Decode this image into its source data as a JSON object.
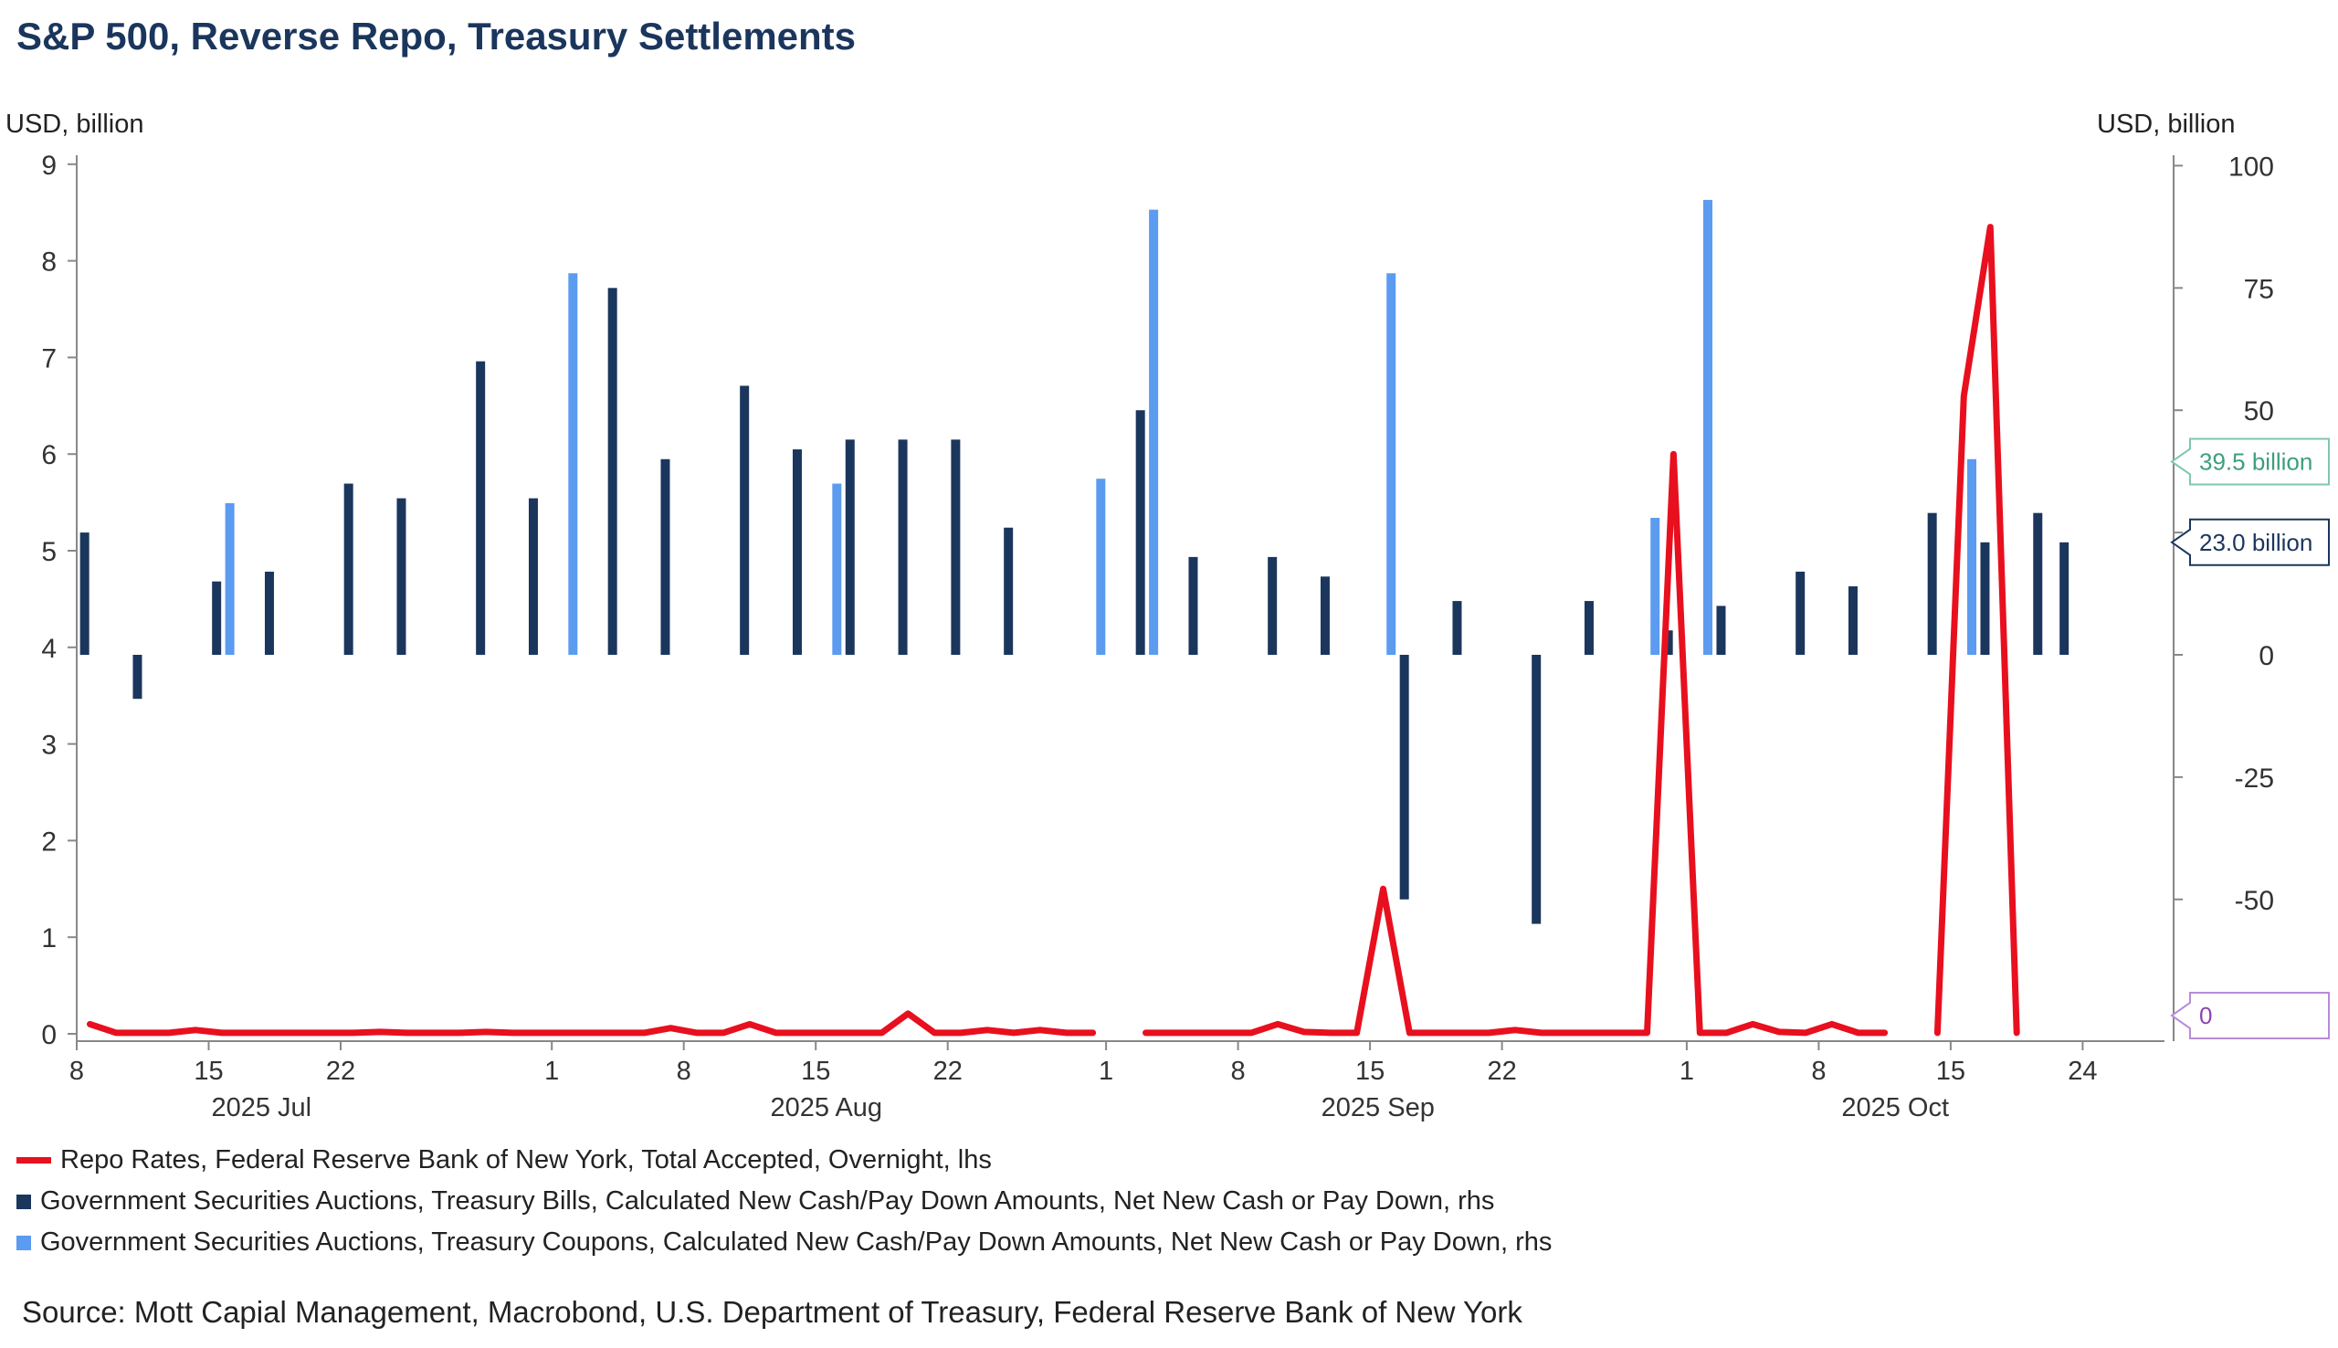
{
  "title": "S&P 500, Reverse Repo, Treasury Settlements",
  "colors": {
    "repo": "#e8101e",
    "bills": "#1b365d",
    "coupons": "#5b9bf0",
    "label_coupons_border": "#7fc7ad",
    "label_coupons_text": "#3f9e7c",
    "label_bills_border": "#1b365d",
    "label_repo_border": "#b98bd6",
    "label_repo_text": "#8e44ad",
    "axis": "#888888",
    "title": "#1b365d"
  },
  "chart_data": {
    "type": "bar+line",
    "title": "S&P 500, Reverse Repo, Treasury Settlements",
    "left_axis": {
      "label": "USD, billion",
      "range": [
        0,
        9
      ],
      "ticks": [
        0,
        1,
        2,
        3,
        4,
        5,
        6,
        7,
        8,
        9
      ]
    },
    "right_axis": {
      "label": "USD, billion",
      "range": [
        -77,
        100
      ],
      "ticks": [
        100,
        75,
        50,
        25,
        0,
        -25,
        -50
      ],
      "tick_labels": [
        "100",
        "75",
        "50",
        "25",
        "0",
        "-25",
        "-50"
      ]
    },
    "x_axis": {
      "day_range": [
        0,
        76
      ],
      "ticks": [
        {
          "day": 0,
          "label": "8"
        },
        {
          "day": 5,
          "label": "15"
        },
        {
          "day": 10,
          "label": "22"
        },
        {
          "day": 18,
          "label": "1"
        },
        {
          "day": 23,
          "label": "8"
        },
        {
          "day": 28,
          "label": "15"
        },
        {
          "day": 33,
          "label": "22"
        },
        {
          "day": 39,
          "label": "1"
        },
        {
          "day": 44,
          "label": "8"
        },
        {
          "day": 49,
          "label": "15"
        },
        {
          "day": 54,
          "label": "22"
        },
        {
          "day": 61,
          "label": "1"
        },
        {
          "day": 66,
          "label": "8"
        },
        {
          "day": 71,
          "label": "15"
        },
        {
          "day": 76,
          "label": "24"
        }
      ],
      "month_labels": [
        {
          "day": 7,
          "label": "2025 Jul"
        },
        {
          "day": 28.4,
          "label": "2025 Aug"
        },
        {
          "day": 49.3,
          "label": "2025 Sep"
        },
        {
          "day": 68.9,
          "label": "2025 Oct"
        }
      ]
    },
    "series": [
      {
        "name": "Repo Rates, Federal Reserve Bank of New York, Total Accepted, Overnight, lhs",
        "type": "line",
        "axis": "left",
        "segments": [
          [
            [
              0.5,
              0.1
            ],
            [
              1.5,
              0.01
            ],
            [
              2.5,
              0.01
            ],
            [
              3.5,
              0.01
            ],
            [
              4.5,
              0.04
            ],
            [
              5.5,
              0.01
            ],
            [
              6.5,
              0.01
            ],
            [
              7.5,
              0.01
            ],
            [
              8.5,
              0.01
            ],
            [
              9.5,
              0.01
            ],
            [
              10.5,
              0.01
            ],
            [
              11.5,
              0.02
            ],
            [
              12.5,
              0.01
            ],
            [
              13.5,
              0.01
            ],
            [
              14.5,
              0.01
            ],
            [
              15.5,
              0.02
            ],
            [
              16.5,
              0.01
            ],
            [
              17.5,
              0.01
            ],
            [
              18.5,
              0.01
            ],
            [
              19.5,
              0.01
            ],
            [
              20.5,
              0.01
            ],
            [
              21.5,
              0.01
            ],
            [
              22.5,
              0.06
            ],
            [
              23.5,
              0.01
            ],
            [
              24.5,
              0.01
            ],
            [
              25.5,
              0.1
            ],
            [
              26.5,
              0.01
            ],
            [
              27.5,
              0.01
            ],
            [
              28.5,
              0.01
            ],
            [
              29.5,
              0.01
            ],
            [
              30.5,
              0.01
            ],
            [
              31.5,
              0.21
            ],
            [
              32.5,
              0.01
            ],
            [
              33.5,
              0.01
            ],
            [
              34.5,
              0.04
            ],
            [
              35.5,
              0.01
            ],
            [
              36.5,
              0.04
            ],
            [
              37.5,
              0.01
            ],
            [
              38.5,
              0.01
            ]
          ],
          [
            [
              40.5,
              0.01
            ],
            [
              41.5,
              0.01
            ],
            [
              42.5,
              0.01
            ],
            [
              43.5,
              0.01
            ],
            [
              44.5,
              0.01
            ],
            [
              45.5,
              0.1
            ],
            [
              46.5,
              0.02
            ],
            [
              47.5,
              0.01
            ],
            [
              48.5,
              0.01
            ],
            [
              49.5,
              1.5
            ],
            [
              50.5,
              0.01
            ],
            [
              51.5,
              0.01
            ],
            [
              52.5,
              0.01
            ],
            [
              53.5,
              0.01
            ],
            [
              54.5,
              0.04
            ],
            [
              55.5,
              0.01
            ],
            [
              56.5,
              0.01
            ],
            [
              57.5,
              0.01
            ],
            [
              58.5,
              0.01
            ],
            [
              59.5,
              0.01
            ],
            [
              60.5,
              6.0
            ],
            [
              61.5,
              0.01
            ],
            [
              62.5,
              0.01
            ],
            [
              63.5,
              0.1
            ],
            [
              64.5,
              0.02
            ],
            [
              65.5,
              0.01
            ],
            [
              66.5,
              0.1
            ],
            [
              67.5,
              0.01
            ],
            [
              68.5,
              0.01
            ]
          ],
          [
            [
              70.5,
              0.01
            ],
            [
              71.5,
              6.6
            ],
            [
              72.5,
              8.35
            ],
            [
              73.5,
              0.01
            ]
          ]
        ]
      },
      {
        "name": "Government Securities Auctions, Treasury Bills, Calculated New Cash/Pay Down Amounts, Net New Cash or Pay Down, rhs",
        "type": "bar",
        "axis": "right",
        "points": [
          [
            0.3,
            25
          ],
          [
            2.3,
            -9
          ],
          [
            5.3,
            15
          ],
          [
            7.3,
            17
          ],
          [
            10.3,
            35
          ],
          [
            12.3,
            32
          ],
          [
            15.3,
            60
          ],
          [
            17.3,
            32
          ],
          [
            20.3,
            75
          ],
          [
            22.3,
            40
          ],
          [
            25.3,
            55
          ],
          [
            27.3,
            42
          ],
          [
            29.3,
            44
          ],
          [
            31.3,
            44
          ],
          [
            33.3,
            44
          ],
          [
            35.3,
            26
          ],
          [
            40.3,
            50
          ],
          [
            42.3,
            20
          ],
          [
            45.3,
            20
          ],
          [
            47.3,
            16
          ],
          [
            50.3,
            -50
          ],
          [
            52.3,
            11
          ],
          [
            55.3,
            -55
          ],
          [
            57.3,
            11
          ],
          [
            60.3,
            5
          ],
          [
            62.3,
            10
          ],
          [
            65.3,
            17
          ],
          [
            67.3,
            14
          ],
          [
            70.3,
            29
          ],
          [
            72.3,
            23
          ],
          [
            74.3,
            29
          ],
          [
            75.3,
            23
          ]
        ]
      },
      {
        "name": "Government Securities Auctions, Treasury Coupons, Calculated New Cash/Pay Down Amounts, Net New Cash or Pay Down, rhs",
        "type": "bar",
        "axis": "right",
        "points": [
          [
            5.8,
            31
          ],
          [
            18.8,
            78
          ],
          [
            28.8,
            35
          ],
          [
            38.8,
            36
          ],
          [
            40.8,
            91
          ],
          [
            49.8,
            78
          ],
          [
            59.8,
            28
          ],
          [
            61.8,
            93
          ],
          [
            71.8,
            40
          ]
        ]
      }
    ],
    "end_labels": [
      {
        "text": "39.5 billion",
        "value": 39.5,
        "axis": "right",
        "series": "coupons"
      },
      {
        "text": "23.0 billion",
        "value": 23.0,
        "axis": "right",
        "series": "bills"
      },
      {
        "text": "0",
        "value": 0,
        "axis": "left",
        "series": "repo"
      }
    ]
  },
  "legend": [
    "Repo Rates, Federal Reserve Bank of New York, Total Accepted, Overnight, lhs",
    "Government Securities Auctions, Treasury Bills, Calculated New Cash/Pay Down Amounts, Net New Cash or Pay Down, rhs",
    "Government Securities Auctions, Treasury Coupons, Calculated New Cash/Pay Down Amounts, Net New Cash or Pay Down, rhs"
  ],
  "source": "Source: Mott Capial Management, Macrobond, U.S. Department of Treasury, Federal Reserve Bank of New York"
}
